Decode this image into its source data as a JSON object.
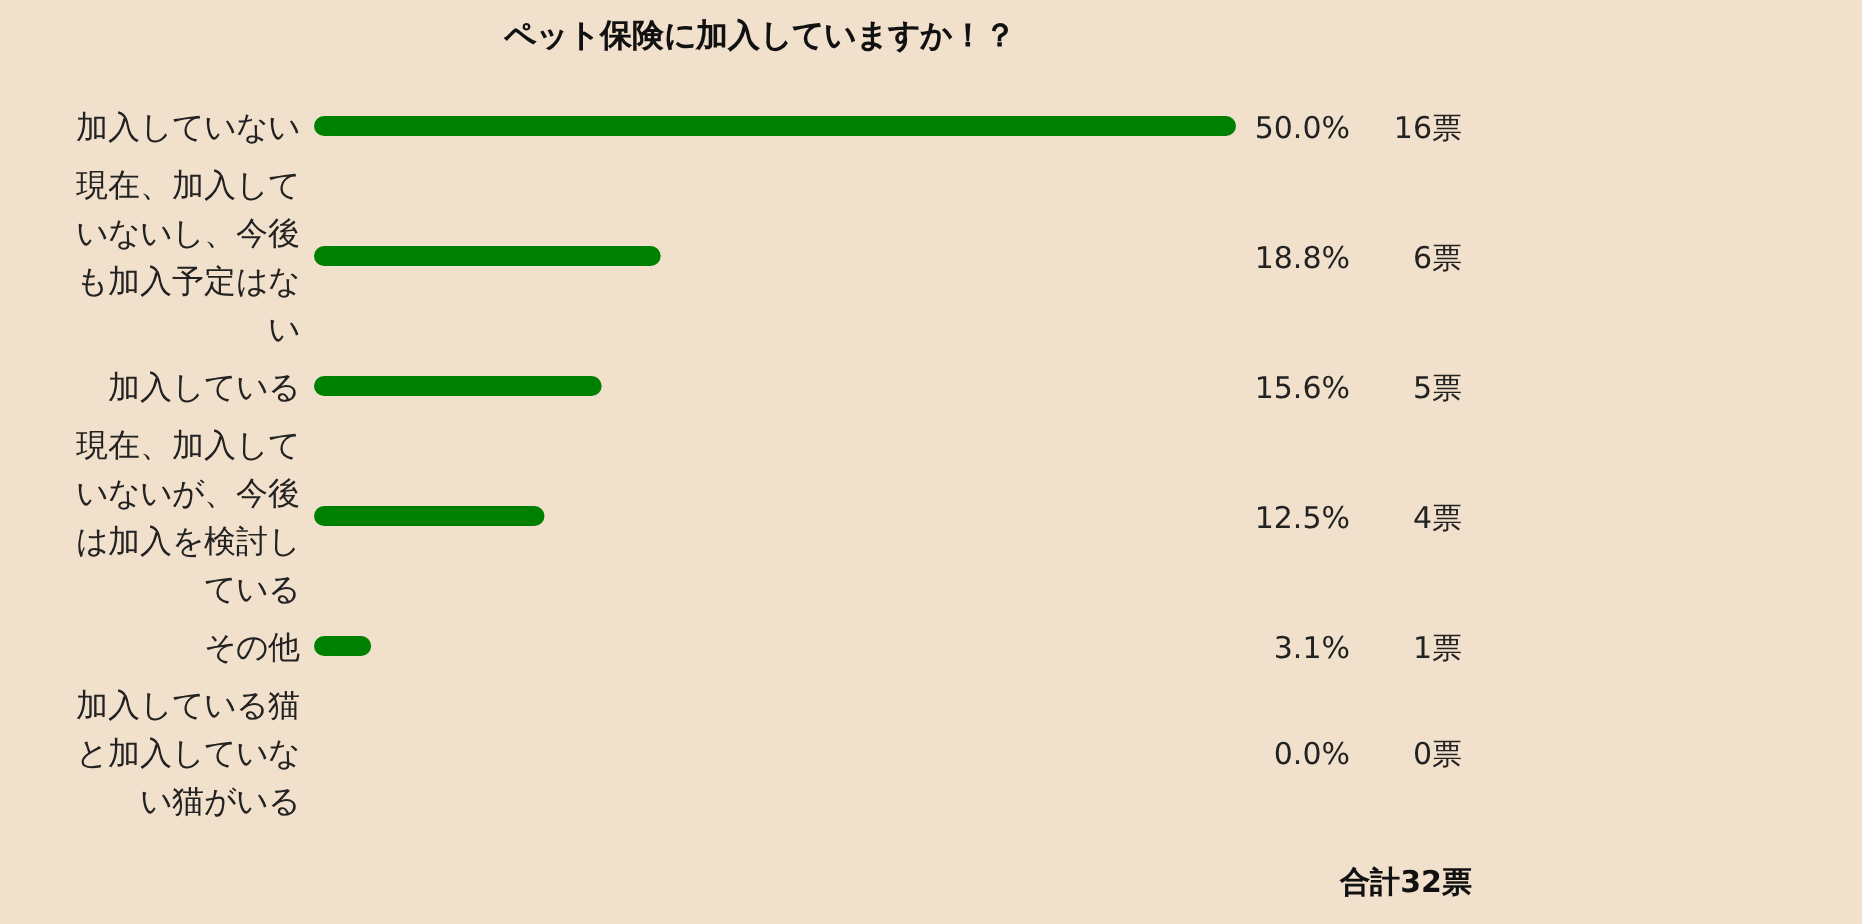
{
  "chart_data": {
    "type": "bar",
    "orientation": "horizontal",
    "title": "ペット保険に加入していますか！？",
    "categories": [
      "加入していない",
      "現在、加入していないし、今後も加入予定はない",
      "加入している",
      "現在、加入していないが、今後は加入を検討している",
      "その他",
      "加入している猫と加入していない猫がいる"
    ],
    "values": [
      50.0,
      18.8,
      15.6,
      12.5,
      3.1,
      0.0
    ],
    "color": "#008000",
    "value_labels": [
      "50.0%",
      "18.8%",
      "15.6%",
      "12.5%",
      "3.1%",
      "0.0%"
    ],
    "annotations": [
      "16票",
      "6票",
      "5票",
      "4票",
      "1票",
      "0票",
      "合計32票"
    ]
  }
}
